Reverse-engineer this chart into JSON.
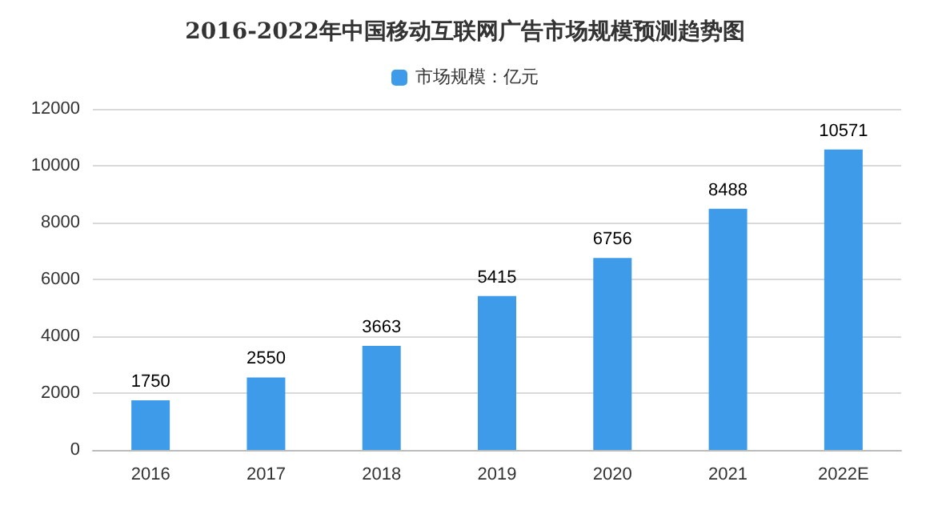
{
  "chart_data": {
    "type": "bar",
    "title": "2016-2022年中国移动互联网广告市场规模预测趋势图",
    "categories": [
      "2016",
      "2017",
      "2018",
      "2019",
      "2020",
      "2021",
      "2022E"
    ],
    "series": [
      {
        "name": "市场规模：亿元",
        "color": "#3d9be9",
        "values": [
          1750,
          2550,
          3663,
          5415,
          6756,
          8488,
          10571
        ]
      }
    ],
    "ylim": [
      0,
      12000
    ],
    "yticks": [
      0,
      2000,
      4000,
      6000,
      8000,
      10000,
      12000
    ],
    "grid": "y",
    "legend": "top",
    "data_labels": true
  }
}
